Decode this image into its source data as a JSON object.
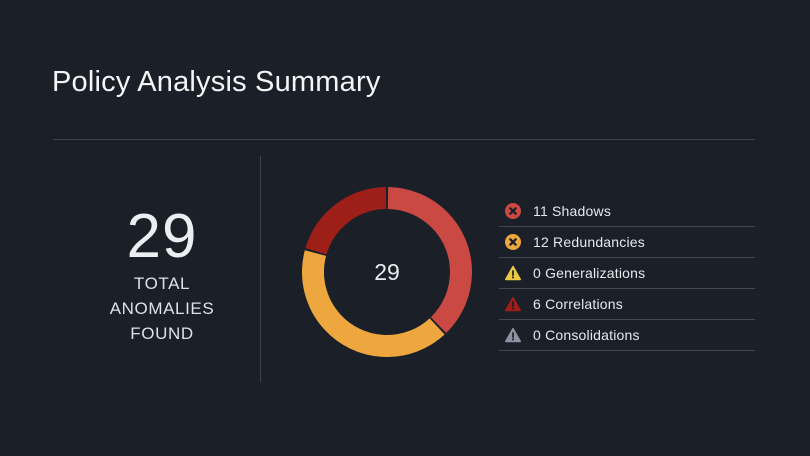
{
  "title": "Policy Analysis Summary",
  "stat": {
    "value": "29",
    "label_lines": [
      "TOTAL",
      "ANOMALIES",
      "FOUND"
    ]
  },
  "chart_data": {
    "type": "pie",
    "subtype": "donut",
    "categories": [
      "Shadows",
      "Redundancies",
      "Generalizations",
      "Correlations",
      "Consolidations"
    ],
    "values": [
      11,
      12,
      0,
      6,
      0
    ],
    "total": 29,
    "center_label": "29",
    "colors": [
      "#ca4a43",
      "#eea73e",
      "#ecc943",
      "#9e1f18",
      "#8b93a0"
    ],
    "start": "top",
    "direction": "clockwise",
    "legend_position": "right"
  },
  "legend": {
    "items": [
      {
        "text": "11 Shadows",
        "icon": "circle-x-icon",
        "color": "#ca4a43"
      },
      {
        "text": "12 Redundancies",
        "icon": "circle-x-icon",
        "color": "#eea73e"
      },
      {
        "text": "0 Generalizations",
        "icon": "warning-triangle-icon",
        "color": "#ecc943"
      },
      {
        "text": "6 Correlations",
        "icon": "warning-triangle-icon",
        "color": "#9e1f18"
      },
      {
        "text": "0 Consolidations",
        "icon": "warning-triangle-icon",
        "color": "#8b93a0"
      }
    ]
  },
  "colors": {
    "background": "#1b1f28",
    "divider": "#3d434e",
    "text_primary": "#f3f5f7",
    "text_secondary": "#dde1e6"
  }
}
